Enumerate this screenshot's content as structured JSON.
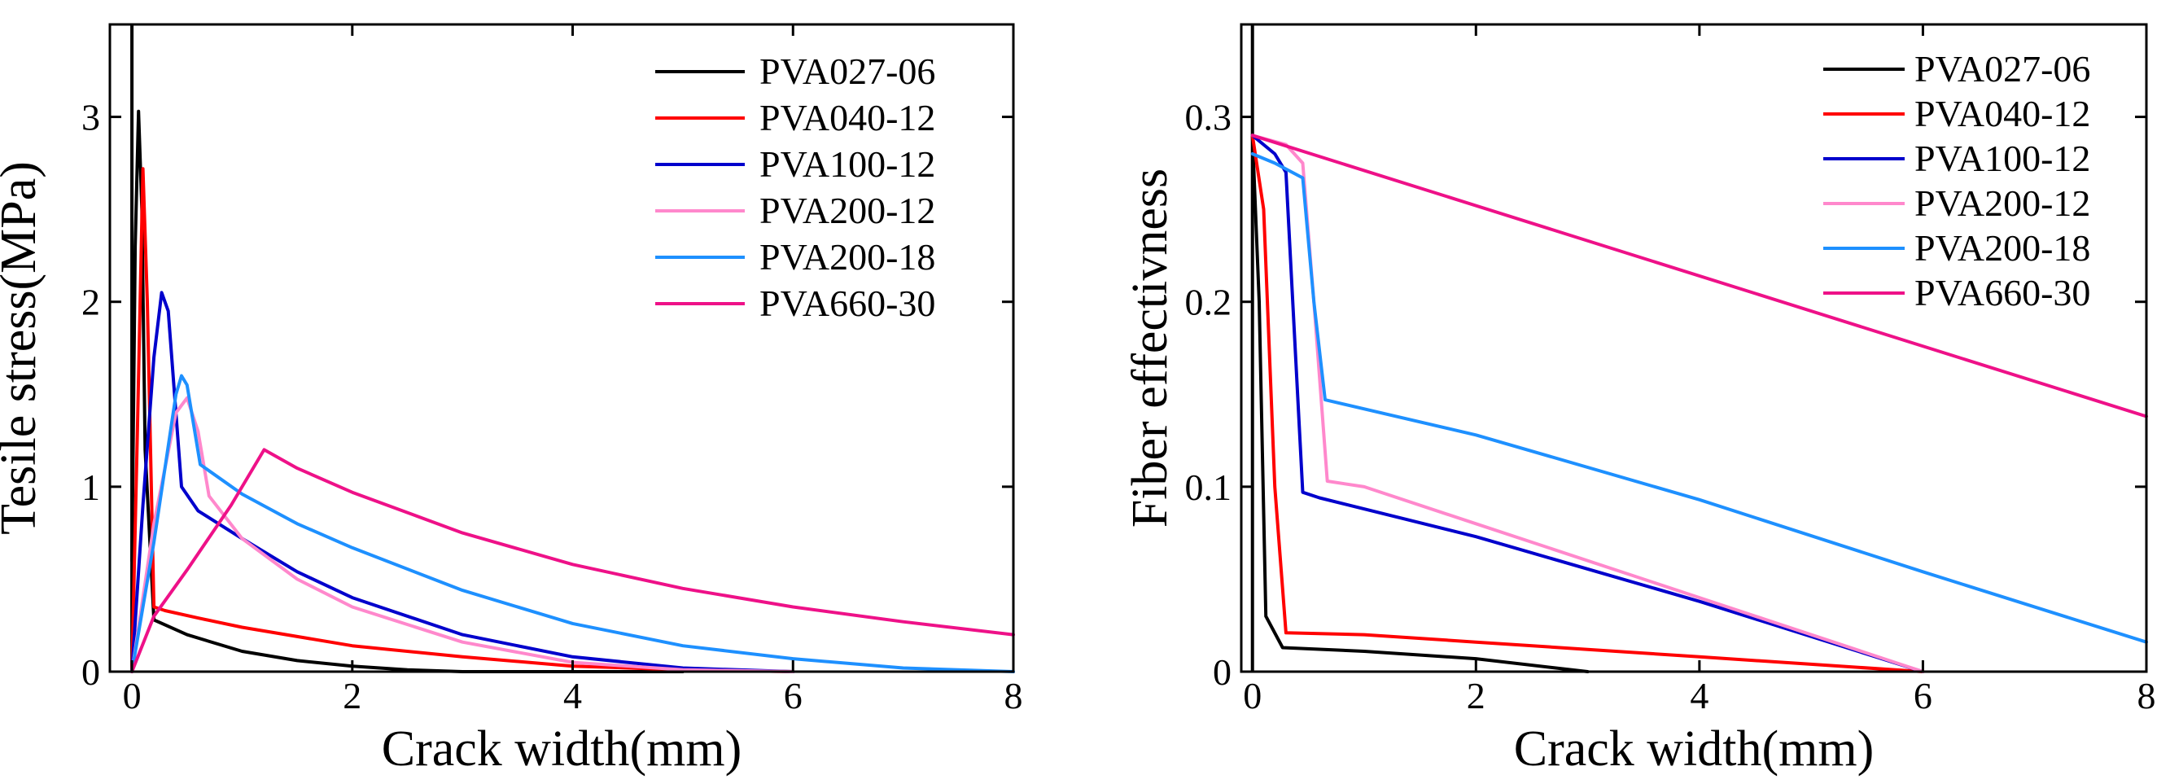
{
  "chart_data": [
    {
      "type": "line",
      "id": "left",
      "xlabel": "Crack width(mm)",
      "ylabel": "Tesile stress(MPa)",
      "xlim": [
        -0.2,
        8
      ],
      "ylim": [
        0,
        3.5
      ],
      "xticks": [
        0,
        2,
        4,
        6,
        8
      ],
      "xtick_labels": [
        "0",
        "2",
        "4",
        "6",
        "8"
      ],
      "yticks": [
        0,
        1,
        2,
        3
      ],
      "ytick_labels": [
        "0",
        "1",
        "2",
        "3"
      ],
      "legend_position": "top-right",
      "series": [
        {
          "name": "PVA027-06",
          "color": "#000000",
          "x": [
            0.0,
            0.03,
            0.06,
            0.09,
            0.12,
            0.2,
            0.5,
            1.0,
            1.5,
            2.0,
            2.5,
            3.0,
            4.0,
            5.0
          ],
          "y": [
            0.6,
            2.3,
            3.03,
            2.5,
            1.2,
            0.28,
            0.2,
            0.11,
            0.06,
            0.03,
            0.01,
            0.0,
            0.0,
            0.0
          ]
        },
        {
          "name": "PVA040-12",
          "color": "#ff0000",
          "x": [
            0.0,
            0.05,
            0.1,
            0.14,
            0.2,
            0.3,
            0.6,
            1.0,
            2.0,
            3.0,
            4.0,
            5.0,
            6.0
          ],
          "y": [
            0.0,
            1.3,
            2.72,
            2.0,
            0.35,
            0.33,
            0.29,
            0.24,
            0.14,
            0.08,
            0.03,
            0.01,
            0.0
          ]
        },
        {
          "name": "PVA100-12",
          "color": "#0000cc",
          "x": [
            0.0,
            0.1,
            0.2,
            0.27,
            0.33,
            0.45,
            0.6,
            1.0,
            1.5,
            2.0,
            3.0,
            4.0,
            5.0,
            6.0
          ],
          "y": [
            0.0,
            0.9,
            1.7,
            2.05,
            1.95,
            1.0,
            0.87,
            0.72,
            0.54,
            0.4,
            0.2,
            0.08,
            0.02,
            0.0
          ]
        },
        {
          "name": "PVA200-12",
          "color": "#ff88cc",
          "x": [
            0.0,
            0.2,
            0.4,
            0.5,
            0.6,
            0.7,
            1.0,
            1.5,
            2.0,
            3.0,
            4.0,
            5.0,
            6.0
          ],
          "y": [
            0.0,
            0.8,
            1.4,
            1.48,
            1.3,
            0.95,
            0.72,
            0.5,
            0.35,
            0.16,
            0.05,
            0.01,
            0.0
          ]
        },
        {
          "name": "PVA200-18",
          "color": "#1e90ff",
          "x": [
            0.0,
            0.2,
            0.4,
            0.45,
            0.5,
            0.62,
            1.0,
            1.5,
            2.0,
            3.0,
            4.0,
            5.0,
            6.0,
            7.0,
            8.0
          ],
          "y": [
            0.0,
            0.7,
            1.5,
            1.6,
            1.55,
            1.12,
            0.96,
            0.8,
            0.67,
            0.44,
            0.26,
            0.14,
            0.07,
            0.02,
            0.0
          ]
        },
        {
          "name": "PVA660-30",
          "color": "#ee1188",
          "x": [
            0.0,
            0.2,
            0.5,
            0.9,
            1.2,
            1.5,
            2.0,
            3.0,
            4.0,
            5.0,
            6.0,
            7.0,
            8.0
          ],
          "y": [
            0.0,
            0.3,
            0.55,
            0.9,
            1.2,
            1.1,
            0.97,
            0.75,
            0.58,
            0.45,
            0.35,
            0.27,
            0.2
          ]
        }
      ]
    },
    {
      "type": "line",
      "id": "right",
      "xlabel": "Crack width(mm)",
      "ylabel": "Fiber effectivness",
      "xlim": [
        -0.1,
        8
      ],
      "ylim": [
        0,
        0.35
      ],
      "xticks": [
        0,
        2,
        4,
        6,
        8
      ],
      "xtick_labels": [
        "0",
        "2",
        "4",
        "6",
        "8"
      ],
      "yticks": [
        0,
        0.1,
        0.2,
        0.3
      ],
      "ytick_labels": [
        "0",
        "0.1",
        "0.2",
        "0.3"
      ],
      "legend_position": "top-right",
      "series": [
        {
          "name": "PVA027-06",
          "color": "#000000",
          "x": [
            0.0,
            0.06,
            0.12,
            0.27,
            1.0,
            2.0,
            3.0
          ],
          "y": [
            0.29,
            0.2,
            0.03,
            0.013,
            0.011,
            0.007,
            0.0
          ]
        },
        {
          "name": "PVA040-12",
          "color": "#ff0000",
          "x": [
            0.0,
            0.1,
            0.2,
            0.3,
            1.0,
            2.0,
            3.0,
            4.0,
            5.0,
            6.0
          ],
          "y": [
            0.29,
            0.25,
            0.1,
            0.021,
            0.02,
            0.016,
            0.012,
            0.008,
            0.004,
            0.0
          ]
        },
        {
          "name": "PVA100-12",
          "color": "#0000cc",
          "x": [
            0.0,
            0.2,
            0.3,
            0.45,
            0.6,
            2.0,
            4.0,
            6.0
          ],
          "y": [
            0.29,
            0.28,
            0.27,
            0.097,
            0.094,
            0.073,
            0.038,
            0.0
          ]
        },
        {
          "name": "PVA200-12",
          "color": "#ff88cc",
          "x": [
            0.0,
            0.3,
            0.45,
            0.55,
            0.67,
            1.0,
            2.0,
            4.0,
            6.0
          ],
          "y": [
            0.29,
            0.285,
            0.275,
            0.2,
            0.103,
            0.1,
            0.08,
            0.04,
            0.0
          ]
        },
        {
          "name": "PVA200-18",
          "color": "#1e90ff",
          "x": [
            0.0,
            0.2,
            0.45,
            0.55,
            0.65,
            2.0,
            4.0,
            6.0,
            8.0
          ],
          "y": [
            0.28,
            0.275,
            0.267,
            0.2,
            0.147,
            0.128,
            0.093,
            0.054,
            0.016
          ]
        },
        {
          "name": "PVA660-30",
          "color": "#ee1188",
          "x": [
            0.0,
            8.0
          ],
          "y": [
            0.29,
            0.138
          ]
        }
      ]
    }
  ]
}
